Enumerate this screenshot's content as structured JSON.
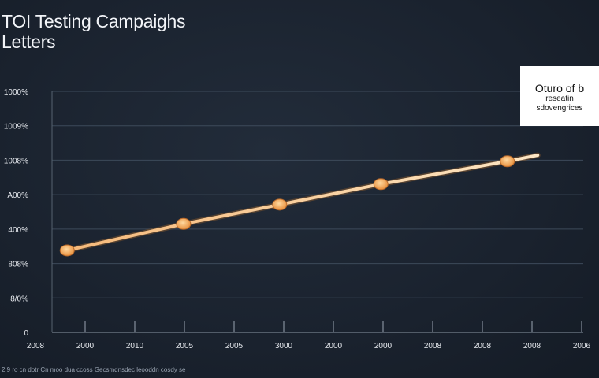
{
  "chart_data": {
    "type": "line",
    "title": [
      "TOI Testing Campaighs",
      "Letters"
    ],
    "y_tick_labels": [
      "0",
      "8/0%",
      "808%",
      "400%",
      "A00%",
      "1008%",
      "1009%",
      "1000%"
    ],
    "x_tick_labels": [
      "2008",
      "2000",
      "2010",
      "2005",
      "2005",
      "3000",
      "2000",
      "2000",
      "2008",
      "2008",
      "2008",
      "2006"
    ],
    "series": [
      {
        "name": "",
        "color": "#f0a55a",
        "points": [
          {
            "x": 0,
            "y": 34
          },
          {
            "x": 2.3,
            "y": 45
          },
          {
            "x": 4.2,
            "y": 53
          },
          {
            "x": 6.2,
            "y": 61.5
          },
          {
            "x": 8.7,
            "y": 71
          },
          {
            "x": 9.3,
            "y": 73.5
          }
        ],
        "markers": [
          0,
          1,
          2,
          3,
          4
        ]
      }
    ],
    "ylim": [
      0,
      100
    ],
    "xlim": [
      -0.3,
      10.2
    ],
    "grid": true,
    "legend": {
      "placement": "top-right",
      "lines": [
        "Oturo of b",
        "reseatin",
        "sdovengrices"
      ]
    }
  },
  "caption": "2 9 ro cn dotr Cn moo dua ccoss Gecsmdnsdec leooddn cosdy se"
}
